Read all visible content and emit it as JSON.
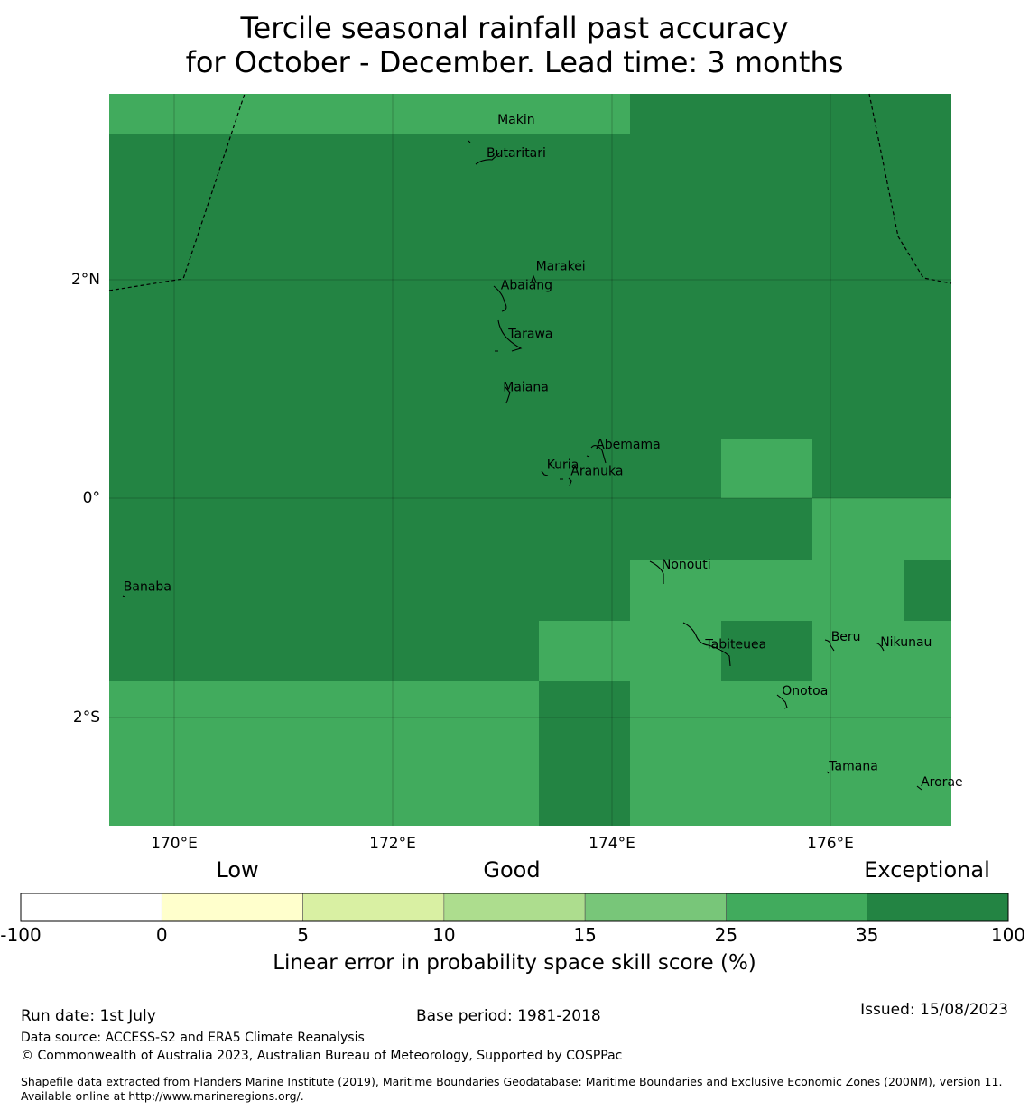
{
  "title_line1": "Tercile seasonal rainfall past accuracy",
  "title_line2": "for October - December. Lead time: 3 months",
  "map": {
    "lon_range": [
      169.4,
      177.1
    ],
    "lat_range": [
      -3.0,
      3.6
    ],
    "lat_labels": [
      {
        "lat": 2,
        "label": "2°N"
      },
      {
        "lat": 0,
        "label": "0°"
      },
      {
        "lat": -2,
        "label": "2°S"
      }
    ],
    "lon_labels": [
      {
        "lon": 170,
        "label": "170°E"
      },
      {
        "lon": 172,
        "label": "172°E"
      },
      {
        "lon": 174,
        "label": "174°E"
      },
      {
        "lon": 176,
        "label": "176°E"
      }
    ],
    "islands": [
      {
        "name": "Makin",
        "lon": 172.95,
        "lat": 3.33
      },
      {
        "name": "Butaritari",
        "lon": 172.85,
        "lat": 3.03
      },
      {
        "name": "Marakei",
        "lon": 173.3,
        "lat": 2.01
      },
      {
        "name": "Abaiang",
        "lon": 172.98,
        "lat": 1.84
      },
      {
        "name": "Tarawa",
        "lon": 173.05,
        "lat": 1.4
      },
      {
        "name": "Maiana",
        "lon": 173.0,
        "lat": 0.92
      },
      {
        "name": "Abemama",
        "lon": 173.85,
        "lat": 0.4
      },
      {
        "name": "Kuria",
        "lon": 173.4,
        "lat": 0.22
      },
      {
        "name": "Aranuka",
        "lon": 173.62,
        "lat": 0.16
      },
      {
        "name": "Nonouti",
        "lon": 174.45,
        "lat": -0.68
      },
      {
        "name": "Banaba",
        "lon": 169.53,
        "lat": -0.88
      },
      {
        "name": "Tabiteuea",
        "lon": 174.85,
        "lat": -1.4
      },
      {
        "name": "Beru",
        "lon": 176.0,
        "lat": -1.33
      },
      {
        "name": "Nikunau",
        "lon": 176.45,
        "lat": -1.38
      },
      {
        "name": "Onotoa",
        "lon": 175.55,
        "lat": -1.82
      },
      {
        "name": "Tamana",
        "lon": 175.98,
        "lat": -2.5
      },
      {
        "name": "Arorae",
        "lon": 176.82,
        "lat": -2.64
      }
    ],
    "grid_colors": {
      "band_25_35": "#41ab5d",
      "band_35_100": "#238443"
    }
  },
  "colorbar": {
    "categories": [
      "Low",
      "Good",
      "Exceptional"
    ],
    "ticks": [
      "-100",
      "0",
      "5",
      "10",
      "15",
      "25",
      "35",
      "100"
    ],
    "colors": [
      "#ffffff",
      "#ffffcc",
      "#d9f0a3",
      "#addd8e",
      "#78c679",
      "#41ab5d",
      "#238443"
    ],
    "xlabel": "Linear error in probability space skill score (%)"
  },
  "footer": {
    "run_date": "Run date: 1st July",
    "base_period": "Base period: 1981-2018",
    "issued": "Issued: 15/08/2023",
    "data_source": "Data source: ACCESS-S2 and ERA5 Climate Reanalysis",
    "copyright": "© Commonwealth of Australia 2023, Australian Bureau of Meteorology, Supported by COSPPac",
    "shapefile": "Shapefile data extracted from Flanders Marine Institute (2019), Maritime Boundaries Geodatabase: Maritime Boundaries and Exclusive Economic Zones (200NM), version 11. Available online at http://www.marineregions.org/."
  }
}
